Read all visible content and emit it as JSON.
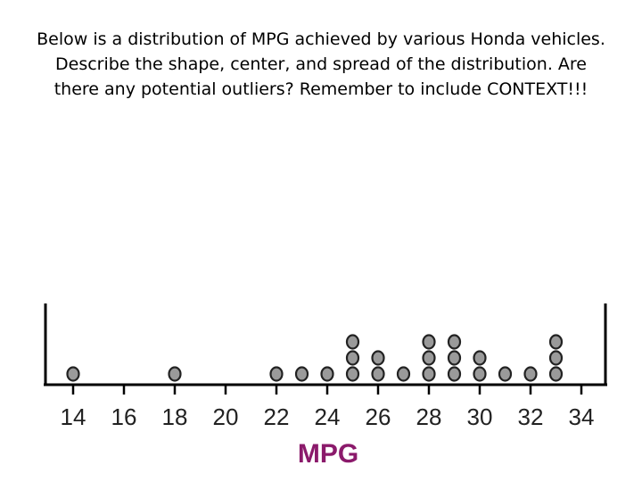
{
  "prompt": "Below is a distribution of MPG achieved by various Honda vehicles. Describe the shape, center, and spread of the distribution.  Are there any potential outliers? Remember to include CONTEXT!!!",
  "chart_data": {
    "type": "dotplot",
    "xlabel": "MPG",
    "xlabel_color": "#8b1a6b",
    "dot_fill": "#9a9a9a",
    "dot_stroke": "#222222",
    "xlim": [
      13,
      35
    ],
    "ticks": [
      14,
      16,
      18,
      20,
      22,
      24,
      26,
      28,
      30,
      32,
      34
    ],
    "values": [
      14,
      18,
      22,
      23,
      24,
      25,
      25,
      25,
      26,
      26,
      27,
      28,
      28,
      28,
      29,
      29,
      29,
      30,
      30,
      31,
      32,
      33,
      33,
      33
    ],
    "grid": false
  }
}
